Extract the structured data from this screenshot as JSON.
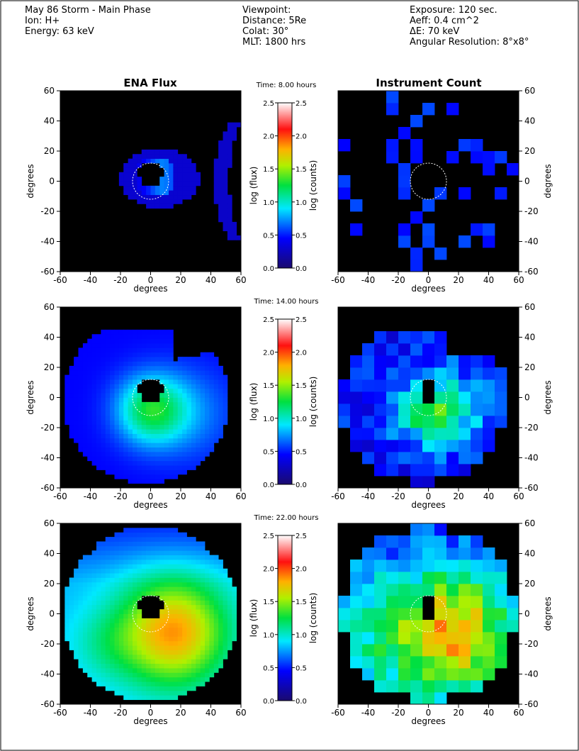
{
  "header": {
    "left": [
      "May 86 Storm - Main Phase",
      "Ion: H+",
      "Energy: 63 keV"
    ],
    "middle": [
      "Viewpoint:",
      "Distance: 5Re",
      "Colat: 30°",
      "MLT: 1800 hrs"
    ],
    "right": [
      "Exposure: 120 sec.",
      "Aeff: 0.4 cm^2",
      "ΔE: 70 keV",
      "Angular Resolution: 8°x8°"
    ]
  },
  "titles": {
    "flux": "ENA Flux",
    "counts": "Instrument Count"
  },
  "axes": {
    "xlabel": "degrees",
    "ylabel": "degrees",
    "xlim": [
      -60,
      60
    ],
    "ylim": [
      -60,
      60
    ],
    "xticks": [
      -60,
      -40,
      -20,
      0,
      20,
      40,
      60
    ],
    "yticks": [
      -60,
      -40,
      -20,
      0,
      20,
      40,
      60
    ]
  },
  "colorbar": {
    "label_left": "log (flux)",
    "label_right": "log (counts)",
    "lim": [
      0,
      2.5
    ],
    "ticks": [
      {
        "value": 0,
        "label": "0.0"
      },
      {
        "value": 0.5,
        "label": "0.5"
      },
      {
        "value": 1,
        "label": "1.0"
      },
      {
        "value": 1.5,
        "label": "1.5"
      },
      {
        "value": 2,
        "label": "2.0"
      },
      {
        "value": 2.5,
        "label": "2.5"
      }
    ]
  },
  "rows": [
    {
      "time": "Time: 8.00 hours"
    },
    {
      "time": "Time: 14.00 hours"
    },
    {
      "time": "Time: 22.00 hours"
    }
  ]
}
